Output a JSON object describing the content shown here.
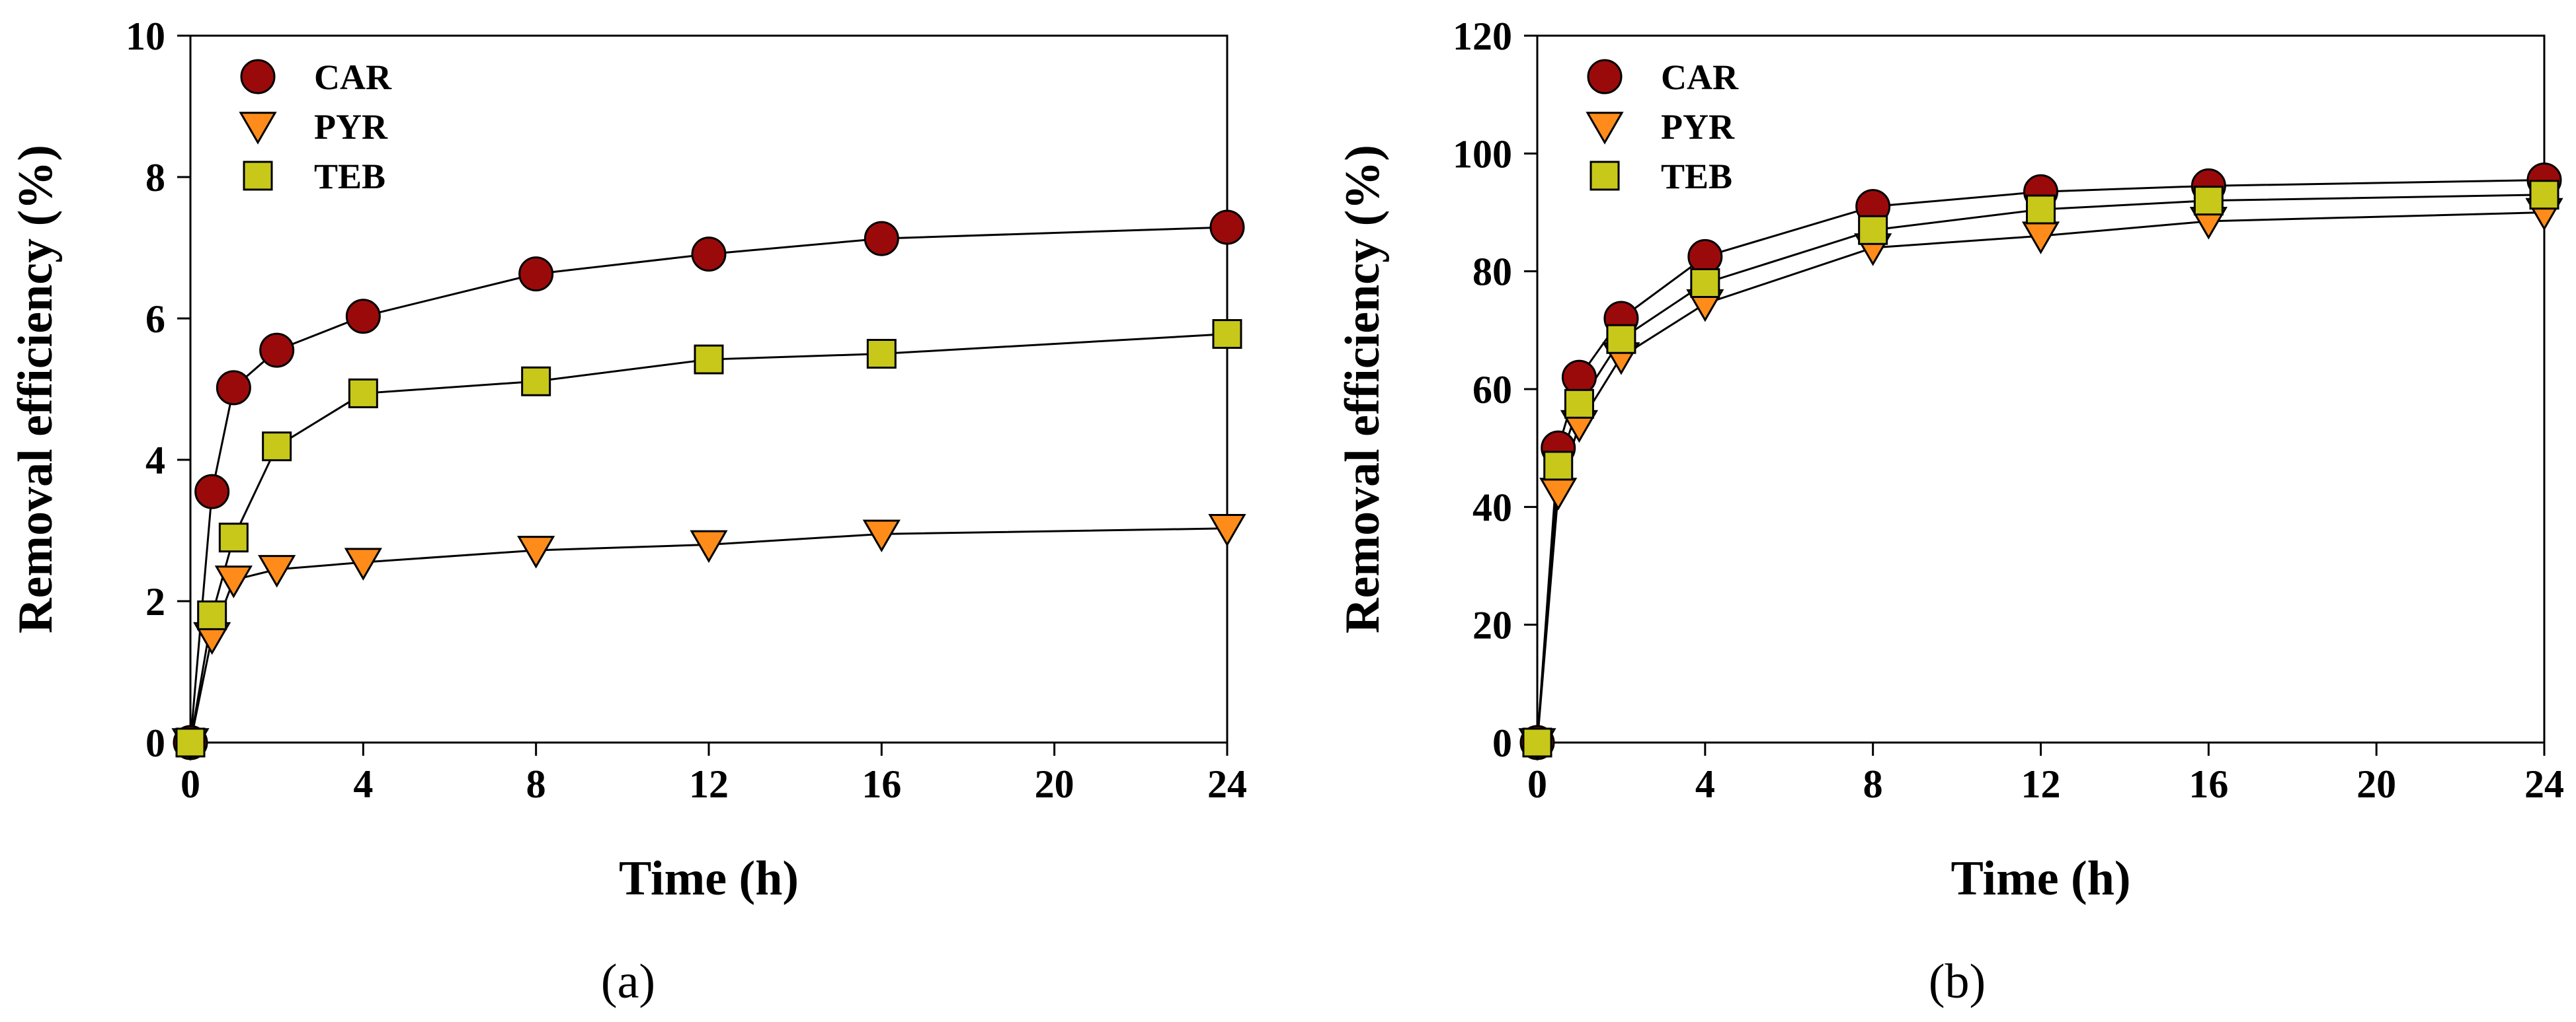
{
  "chart_data": [
    {
      "type": "line",
      "panel_label": "(a)",
      "xlabel": "Time (h)",
      "ylabel": "Removal efficiency (%)",
      "xlim": [
        0,
        24
      ],
      "ylim": [
        0,
        10
      ],
      "xticks": [
        0,
        4,
        8,
        12,
        16,
        20,
        24
      ],
      "yticks": [
        0,
        2,
        4,
        6,
        8,
        10
      ],
      "legend_position": "top-left",
      "x": [
        0,
        0.5,
        1,
        2,
        4,
        8,
        12,
        16,
        24
      ],
      "series": [
        {
          "name": "CAR",
          "marker": "circle",
          "color": "#9b0a0a",
          "values": [
            0,
            3.55,
            5.02,
            5.55,
            6.03,
            6.63,
            6.91,
            7.13,
            7.29
          ]
        },
        {
          "name": "PYR",
          "marker": "triangle-down",
          "color": "#ff8c1a",
          "values": [
            0,
            1.5,
            2.3,
            2.45,
            2.55,
            2.72,
            2.8,
            2.95,
            3.03
          ]
        },
        {
          "name": "TEB",
          "marker": "square",
          "color": "#c8c81a",
          "values": [
            0,
            1.8,
            2.9,
            4.19,
            4.94,
            5.11,
            5.42,
            5.5,
            5.78
          ]
        }
      ]
    },
    {
      "type": "line",
      "panel_label": "(b)",
      "xlabel": "Time (h)",
      "ylabel": "Removal efficiency (%)",
      "xlim": [
        0,
        24
      ],
      "ylim": [
        0,
        120
      ],
      "xticks": [
        0,
        4,
        8,
        12,
        16,
        20,
        24
      ],
      "yticks": [
        0,
        20,
        40,
        60,
        80,
        100,
        120
      ],
      "legend_position": "top-left",
      "x": [
        0,
        0.5,
        1,
        2,
        4,
        8,
        12,
        16,
        24
      ],
      "series": [
        {
          "name": "CAR",
          "marker": "circle",
          "color": "#9b0a0a",
          "values": [
            0,
            50,
            62,
            72,
            82.5,
            91,
            93.5,
            94.5,
            95.5
          ]
        },
        {
          "name": "PYR",
          "marker": "triangle-down",
          "color": "#ff8c1a",
          "values": [
            0,
            42.5,
            54,
            65.5,
            74.5,
            84,
            86,
            88.5,
            90
          ]
        },
        {
          "name": "TEB",
          "marker": "square",
          "color": "#c8c81a",
          "values": [
            0,
            47,
            57.5,
            68.5,
            78,
            87,
            90.5,
            92,
            93
          ]
        }
      ]
    }
  ]
}
